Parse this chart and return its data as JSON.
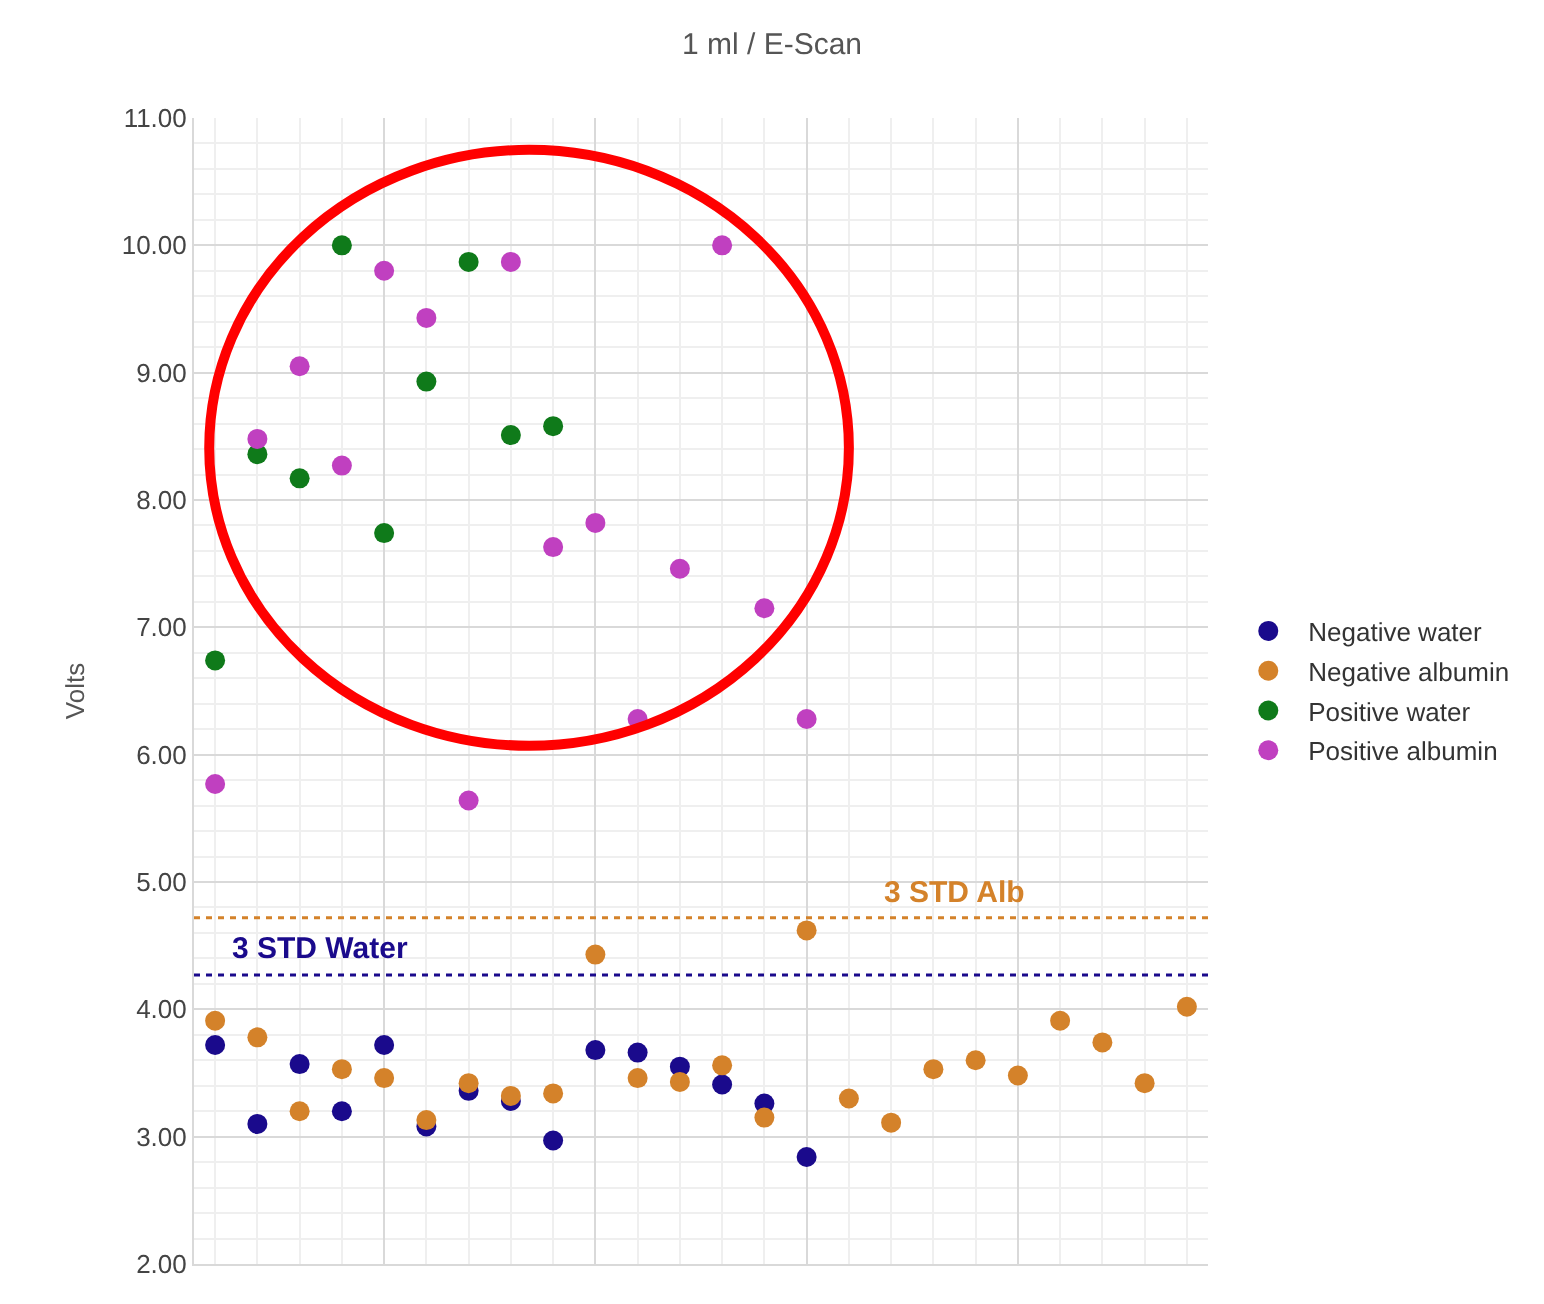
{
  "chart_data": {
    "type": "scatter",
    "title": "1 ml / E-Scan",
    "ylabel": "Volts",
    "categories": [
      null,
      null,
      null,
      null,
      null,
      null,
      null,
      null,
      null,
      null,
      null,
      null,
      null,
      null,
      null,
      null,
      null,
      null,
      null,
      null,
      null,
      null,
      null,
      null
    ],
    "series": [
      {
        "name": "Negative water",
        "color": "#1a0a8c",
        "values": [
          3.72,
          3.1,
          3.57,
          3.2,
          3.72,
          3.08,
          3.36,
          3.28,
          2.97,
          3.68,
          3.66,
          3.55,
          3.41,
          3.26,
          2.84,
          null,
          null,
          null,
          null,
          null,
          null,
          null,
          null,
          null
        ]
      },
      {
        "name": "Negative albumin",
        "color": "#d4822a",
        "values": [
          3.91,
          3.78,
          3.2,
          3.53,
          3.46,
          3.13,
          3.42,
          3.32,
          3.34,
          4.43,
          3.46,
          3.43,
          3.56,
          3.15,
          4.62,
          3.3,
          3.11,
          3.53,
          3.6,
          3.48,
          3.91,
          3.74,
          3.42,
          4.02
        ]
      },
      {
        "name": "Positive water",
        "color": "#0f7a1a",
        "values": [
          6.74,
          8.36,
          8.17,
          10.0,
          7.74,
          8.93,
          9.87,
          8.51,
          8.58,
          null,
          null,
          null,
          null,
          null,
          null,
          null,
          null,
          null,
          null,
          null,
          null,
          null,
          null,
          null
        ]
      },
      {
        "name": "Positive albumin",
        "color": "#c040c0",
        "values": [
          5.77,
          8.48,
          9.05,
          8.27,
          9.8,
          9.43,
          5.64,
          9.87,
          7.63,
          7.82,
          6.28,
          7.46,
          10.0,
          7.15,
          6.28,
          null,
          null,
          null,
          null,
          null,
          null,
          null,
          null,
          null
        ]
      }
    ],
    "ylim": [
      2,
      11
    ],
    "yticks": [
      {
        "value": 2,
        "label": "2.00"
      },
      {
        "value": 3,
        "label": "3.00"
      },
      {
        "value": 4,
        "label": "4.00"
      },
      {
        "value": 5,
        "label": "5.00"
      },
      {
        "value": 6,
        "label": "6.00"
      },
      {
        "value": 7,
        "label": "7.00"
      },
      {
        "value": 8,
        "label": "8.00"
      },
      {
        "value": 9,
        "label": "9.00"
      },
      {
        "value": 10,
        "label": "10.00"
      },
      {
        "value": 11,
        "label": "11.00"
      }
    ],
    "ref_lines": [
      {
        "axis": "y",
        "value": 4.72,
        "label": "3 STD Alb",
        "color": "#d4822a",
        "line_style": "dotted"
      },
      {
        "axis": "y",
        "value": 4.27,
        "label": "3 STD Water",
        "color": "#1a0a8c",
        "line_style": "dotted"
      }
    ],
    "grid": true,
    "legend": "right",
    "marker": "circle"
  }
}
